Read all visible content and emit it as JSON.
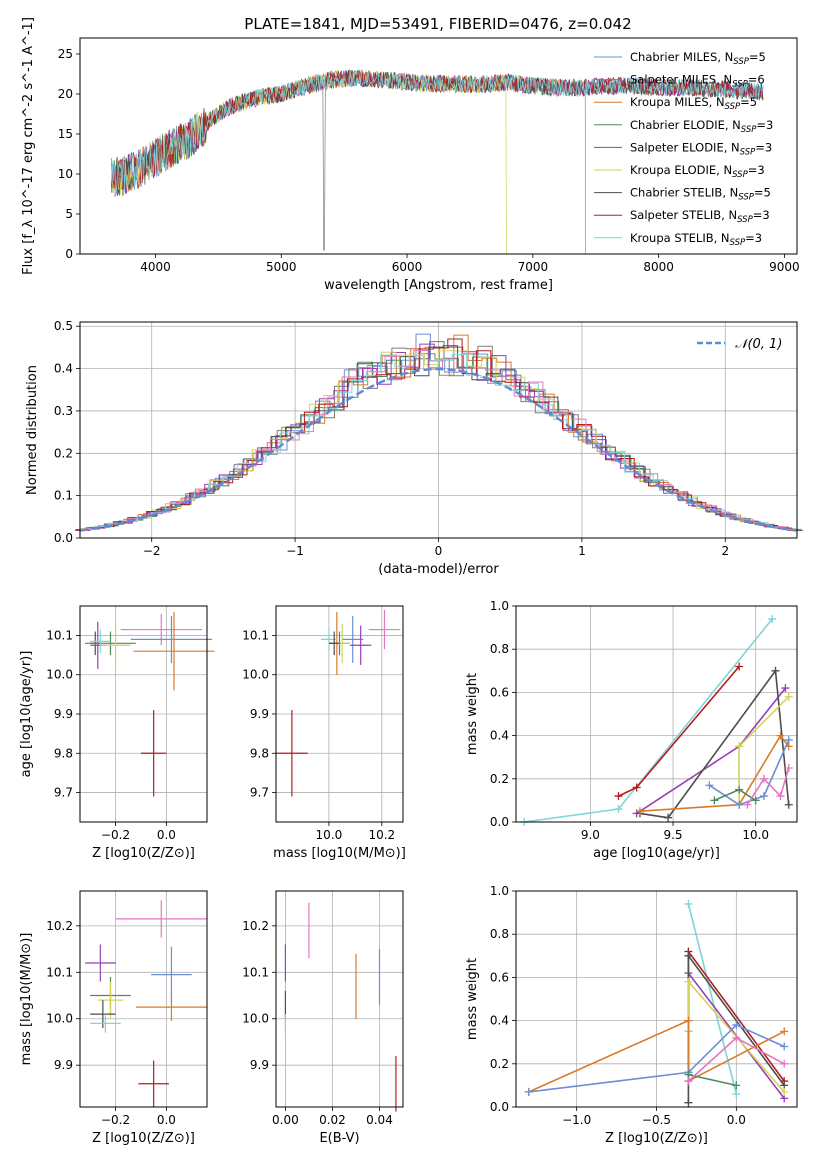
{
  "figure": {
    "title": "PLATE=1841, MJD=53491, FIBERID=0476, z=0.042"
  },
  "colors": {
    "Chabrier MILES": "#6c8ed6",
    "Salpeter MILES": "#7d7d7d",
    "Kroupa MILES": "#d97b2a",
    "Chabrier ELODIE": "#4f8a5d",
    "Salpeter ELODIE": "#9a3fb5",
    "Kroupa ELODIE": "#d3d35a",
    "Chabrier STELIB": "#4d4d4d",
    "Salpeter STELIB": "#b51d1d",
    "Kroupa STELIB": "#7fd4d8",
    "pink": "#e377c2",
    "gauss": "#5b8bdb"
  },
  "chart_data": [
    {
      "id": "spectrum",
      "type": "line",
      "xlabel": "wavelength [Angstrom, rest frame]",
      "ylabel": "Flux [f_λ 10^-17 erg cm^-2 s^-1 A^-1]",
      "xlim": [
        3400,
        9100
      ],
      "ylim": [
        0,
        27
      ],
      "xticks": [
        4000,
        5000,
        6000,
        7000,
        8000,
        9000
      ],
      "yticks": [
        0,
        5,
        10,
        15,
        20,
        25
      ],
      "grid": false,
      "legend_position": "top-right",
      "legend": [
        {
          "name": "Chabrier MILES",
          "nssp": "5",
          "color": "#6c8ed6"
        },
        {
          "name": "Salpeter MILES",
          "nssp": "6",
          "color": "#7d7d7d"
        },
        {
          "name": "Kroupa MILES",
          "nssp": "5",
          "color": "#d97b2a"
        },
        {
          "name": "Chabrier ELODIE",
          "nssp": "3",
          "color": "#4f8a5d"
        },
        {
          "name": "Salpeter ELODIE",
          "nssp": "3",
          "color": "#9a3fb5"
        },
        {
          "name": "Kroupa ELODIE",
          "nssp": "3",
          "color": "#d3d35a"
        },
        {
          "name": "Chabrier STELIB",
          "nssp": "5",
          "color": "#4d4d4d"
        },
        {
          "name": "Salpeter STELIB",
          "nssp": "3",
          "color": "#b51d1d"
        },
        {
          "name": "Kroupa STELIB",
          "nssp": "3",
          "color": "#7fd4d8"
        }
      ],
      "data_x": [
        3650,
        3750,
        3850,
        3950,
        4050,
        4150,
        4250,
        4350,
        4450,
        4600,
        4800,
        5000,
        5200,
        5400,
        5600,
        5800,
        6000,
        6200,
        6400,
        6600,
        6800,
        7000,
        7200,
        7400,
        7600,
        7800,
        8000,
        8200,
        8400,
        8600,
        8800
      ],
      "data_y": [
        9.5,
        9.8,
        10.5,
        11.5,
        12.5,
        13.5,
        14.2,
        15.5,
        17.0,
        18.5,
        19.5,
        20.0,
        21.0,
        21.8,
        22.0,
        21.8,
        21.5,
        21.3,
        21.2,
        21.2,
        21.5,
        21.0,
        20.8,
        20.8,
        21.0,
        21.0,
        20.8,
        20.8,
        20.7,
        20.5,
        20.3
      ],
      "features": [
        {
          "series": "Kroupa ELODIE",
          "x": 6790,
          "note": "drop"
        },
        {
          "series": "Kroupa MILES",
          "x": 7420,
          "note": "drop"
        }
      ]
    },
    {
      "id": "residuals",
      "type": "histogram",
      "xlabel": "(data-model)/error",
      "ylabel": "Normed distribution",
      "xlim": [
        -2.5,
        2.5
      ],
      "ylim": [
        0,
        0.51
      ],
      "xticks": [
        -2,
        -1,
        0,
        1,
        2
      ],
      "yticks": [
        0.0,
        0.1,
        0.2,
        0.3,
        0.4,
        0.5
      ],
      "grid": true,
      "legend_position": "top-right",
      "gaussian_label": "𝒩(0, 1)",
      "bin_width": 0.1
    },
    {
      "id": "age_vs_Z",
      "type": "errorbar",
      "xlabel": "Z [log10(Z/Z⊙)]",
      "ylabel": "age [log10(age/yr)]",
      "xlim": [
        -0.34,
        0.16
      ],
      "ylim": [
        9.625,
        10.175
      ],
      "xticks": [
        -0.2,
        0.0
      ],
      "yticks": [
        9.7,
        9.8,
        9.9,
        10.0,
        10.1
      ],
      "grid": true,
      "points": [
        {
          "color": "#e377c2",
          "x": -0.02,
          "xerr": 0.16,
          "y": 10.115,
          "yerr": 0.04
        },
        {
          "color": "#6c8ed6",
          "x": 0.02,
          "xerr": 0.16,
          "y": 10.09,
          "yerr": 0.06
        },
        {
          "color": "#d97b2a",
          "x": 0.03,
          "xerr": 0.16,
          "y": 10.06,
          "yerr": 0.1
        },
        {
          "color": "#4d4d4d",
          "x": -0.28,
          "xerr": 0.02,
          "y": 10.08,
          "yerr": 0.03
        },
        {
          "color": "#9a3fb5",
          "x": -0.27,
          "xerr": 0.03,
          "y": 10.075,
          "yerr": 0.06
        },
        {
          "color": "#4f8a5d",
          "x": -0.22,
          "xerr": 0.1,
          "y": 10.08,
          "yerr": 0.03
        },
        {
          "color": "#d3d35a",
          "x": -0.2,
          "xerr": 0.06,
          "y": 10.075,
          "yerr": 0.05
        },
        {
          "color": "#7fd4d8",
          "x": -0.26,
          "xerr": 0.04,
          "y": 10.085,
          "yerr": 0.03
        },
        {
          "color": "#b51d1d",
          "x": -0.05,
          "xerr": 0.05,
          "y": 9.8,
          "yerr": 0.11
        }
      ]
    },
    {
      "id": "age_vs_mass",
      "type": "errorbar",
      "xlabel": "mass [log10(M/M⊙)]",
      "ylabel": "",
      "xlim": [
        9.8,
        10.28
      ],
      "ylim": [
        9.625,
        10.175
      ],
      "xticks": [
        10.0,
        10.2
      ],
      "yticks": [
        9.7,
        9.8,
        9.9,
        10.0,
        10.1
      ],
      "grid": true,
      "points": [
        {
          "color": "#e377c2",
          "x": 10.21,
          "xerr": 0.06,
          "y": 10.115,
          "yerr": 0.05
        },
        {
          "color": "#6c8ed6",
          "x": 10.09,
          "xerr": 0.04,
          "y": 10.09,
          "yerr": 0.06
        },
        {
          "color": "#d97b2a",
          "x": 10.03,
          "xerr": 0.03,
          "y": 10.08,
          "yerr": 0.08
        },
        {
          "color": "#9a3fb5",
          "x": 10.12,
          "xerr": 0.04,
          "y": 10.075,
          "yerr": 0.05
        },
        {
          "color": "#4f8a5d",
          "x": 10.04,
          "xerr": 0.04,
          "y": 10.08,
          "yerr": 0.03
        },
        {
          "color": "#d3d35a",
          "x": 10.05,
          "xerr": 0.03,
          "y": 10.08,
          "yerr": 0.05
        },
        {
          "color": "#7fd4d8",
          "x": 10.0,
          "xerr": 0.03,
          "y": 10.09,
          "yerr": 0.03
        },
        {
          "color": "#4d4d4d",
          "x": 10.02,
          "xerr": 0.02,
          "y": 10.08,
          "yerr": 0.03
        },
        {
          "color": "#b51d1d",
          "x": 9.86,
          "xerr": 0.06,
          "y": 9.8,
          "yerr": 0.11
        }
      ]
    },
    {
      "id": "massweight_vs_age",
      "type": "line",
      "xlabel": "age [log10(age/yr)]",
      "ylabel": "mass weight",
      "xlim": [
        8.55,
        10.25
      ],
      "ylim": [
        0,
        1.0
      ],
      "xticks": [
        9.0,
        9.5,
        10.0
      ],
      "yticks": [
        0.0,
        0.2,
        0.4,
        0.6,
        0.8,
        1.0
      ],
      "grid": true,
      "series": [
        {
          "name": "Kroupa STELIB",
          "color": "#7fd4d8",
          "points": [
            [
              8.6,
              0.0
            ],
            [
              9.17,
              0.06
            ],
            [
              10.1,
              0.94
            ]
          ]
        },
        {
          "name": "Salpeter STELIB",
          "color": "#b51d1d",
          "points": [
            [
              9.17,
              0.12
            ],
            [
              9.28,
              0.16
            ],
            [
              9.9,
              0.72
            ]
          ]
        },
        {
          "name": "Salpeter ELODIE",
          "color": "#9a3fb5",
          "points": [
            [
              9.28,
              0.04
            ],
            [
              9.9,
              0.35
            ],
            [
              10.18,
              0.62
            ]
          ]
        },
        {
          "name": "Chabrier STELIB",
          "color": "#4d4d4d",
          "points": [
            [
              9.3,
              0.04
            ],
            [
              9.47,
              0.02
            ],
            [
              10.12,
              0.7
            ],
            [
              10.2,
              0.08
            ]
          ]
        },
        {
          "name": "Kroupa ELODIE",
          "color": "#d3d35a",
          "points": [
            [
              9.9,
              0.08
            ],
            [
              9.9,
              0.35
            ],
            [
              10.2,
              0.58
            ]
          ]
        },
        {
          "name": "Kroupa MILES",
          "color": "#d97b2a",
          "points": [
            [
              9.3,
              0.05
            ],
            [
              9.9,
              0.08
            ],
            [
              10.15,
              0.4
            ],
            [
              10.2,
              0.35
            ]
          ]
        },
        {
          "name": "Chabrier MILES",
          "color": "#6c8ed6",
          "points": [
            [
              9.72,
              0.17
            ],
            [
              9.9,
              0.08
            ],
            [
              10.05,
              0.12
            ],
            [
              10.2,
              0.38
            ]
          ]
        },
        {
          "name": "Chabrier ELODIE",
          "color": "#4f8a5d",
          "points": [
            [
              9.75,
              0.1
            ],
            [
              9.9,
              0.15
            ],
            [
              10.0,
              0.1
            ]
          ]
        },
        {
          "name": "pink",
          "color": "#e377c2",
          "points": [
            [
              9.95,
              0.08
            ],
            [
              10.05,
              0.2
            ],
            [
              10.15,
              0.12
            ],
            [
              10.2,
              0.25
            ]
          ]
        }
      ]
    },
    {
      "id": "mass_vs_Z",
      "type": "errorbar",
      "xlabel": "Z [log10(Z/Z⊙)]",
      "ylabel": "mass [log10(M/M⊙)]",
      "xlim": [
        -0.34,
        0.16
      ],
      "ylim": [
        9.81,
        10.275
      ],
      "xticks": [
        -0.2,
        0.0
      ],
      "yticks": [
        9.9,
        10.0,
        10.1,
        10.2
      ],
      "grid": true,
      "points": [
        {
          "color": "#e377c2",
          "x": -0.02,
          "xerr": 0.18,
          "y": 10.215,
          "yerr": 0.04
        },
        {
          "color": "#9a3fb5",
          "x": -0.26,
          "xerr": 0.06,
          "y": 10.12,
          "yerr": 0.04
        },
        {
          "color": "#6c8ed6",
          "x": 0.02,
          "xerr": 0.08,
          "y": 10.095,
          "yerr": 0.06
        },
        {
          "color": "#4f8a5d",
          "x": -0.22,
          "xerr": 0.08,
          "y": 10.05,
          "yerr": 0.04
        },
        {
          "color": "#d3d35a",
          "x": -0.22,
          "xerr": 0.05,
          "y": 10.04,
          "yerr": 0.04
        },
        {
          "color": "#d97b2a",
          "x": 0.02,
          "xerr": 0.14,
          "y": 10.025,
          "yerr": 0.03
        },
        {
          "color": "#4d4d4d",
          "x": -0.25,
          "xerr": 0.05,
          "y": 10.01,
          "yerr": 0.03
        },
        {
          "color": "#7fd4d8",
          "x": -0.24,
          "xerr": 0.06,
          "y": 9.99,
          "yerr": 0.02
        },
        {
          "color": "#b51d1d",
          "x": -0.05,
          "xerr": 0.06,
          "y": 9.86,
          "yerr": 0.05
        }
      ]
    },
    {
      "id": "mass_vs_ebv",
      "type": "errorbar",
      "xlabel": "E(B-V)",
      "ylabel": "",
      "xlim": [
        -0.004,
        0.05
      ],
      "ylim": [
        9.81,
        10.275
      ],
      "xticks": [
        0.0,
        0.02,
        0.04
      ],
      "yticks": [
        9.9,
        10.0,
        10.1,
        10.2
      ],
      "grid": true,
      "points": [
        {
          "color": "#e377c2",
          "x": 0.01,
          "xerr": 0,
          "y": 10.19,
          "yerr": 0.06
        },
        {
          "color": "#9a3fb5",
          "x": 0.0,
          "xerr": 0,
          "y": 10.12,
          "yerr": 0.04
        },
        {
          "color": "#6c8ed6",
          "x": 0.04,
          "xerr": 0,
          "y": 10.09,
          "yerr": 0.06
        },
        {
          "color": "#d97b2a",
          "x": 0.03,
          "xerr": 0,
          "y": 10.07,
          "yerr": 0.07
        },
        {
          "color": "#4d4d4d",
          "x": 0.0,
          "xerr": 0,
          "y": 10.03,
          "yerr": 0.03
        },
        {
          "color": "#7fd4d8",
          "x": 0.0,
          "xerr": 0,
          "y": 9.99,
          "yerr": 0.02
        },
        {
          "color": "#b51d1d",
          "x": 0.047,
          "xerr": 0,
          "y": 9.86,
          "yerr": 0.06
        }
      ]
    },
    {
      "id": "massweight_vs_Z",
      "type": "line",
      "xlabel": "Z [log10(Z/Z⊙)]",
      "ylabel": "mass weight",
      "xlim": [
        -1.38,
        0.38
      ],
      "ylim": [
        0,
        1.0
      ],
      "xticks": [
        -1.0,
        -0.5,
        0.0
      ],
      "yticks": [
        0.0,
        0.2,
        0.4,
        0.6,
        0.8,
        1.0
      ],
      "grid": true,
      "series": [
        {
          "name": "Kroupa STELIB",
          "color": "#7fd4d8",
          "points": [
            [
              -0.3,
              0.94
            ],
            [
              0.0,
              0.06
            ]
          ]
        },
        {
          "name": "Salpeter STELIB",
          "color": "#b51d1d",
          "points": [
            [
              -0.3,
              0.16
            ],
            [
              -0.3,
              0.72
            ],
            [
              0.3,
              0.12
            ]
          ]
        },
        {
          "name": "Salpeter ELODIE",
          "color": "#9a3fb5",
          "points": [
            [
              -0.3,
              0.35
            ],
            [
              -0.3,
              0.62
            ],
            [
              0.3,
              0.04
            ]
          ]
        },
        {
          "name": "Chabrier STELIB",
          "color": "#4d4d4d",
          "points": [
            [
              -0.3,
              0.02
            ],
            [
              -0.3,
              0.7
            ],
            [
              0.3,
              0.1
            ]
          ]
        },
        {
          "name": "Kroupa ELODIE",
          "color": "#d3d35a",
          "points": [
            [
              -0.3,
              0.35
            ],
            [
              -0.3,
              0.58
            ],
            [
              0.3,
              0.07
            ]
          ]
        },
        {
          "name": "Kroupa MILES",
          "color": "#d97b2a",
          "points": [
            [
              -1.3,
              0.07
            ],
            [
              -0.3,
              0.4
            ],
            [
              -0.3,
              0.12
            ],
            [
              0.3,
              0.35
            ]
          ]
        },
        {
          "name": "Chabrier MILES",
          "color": "#6c8ed6",
          "points": [
            [
              -1.3,
              0.07
            ],
            [
              -0.3,
              0.16
            ],
            [
              0.0,
              0.38
            ],
            [
              0.3,
              0.28
            ]
          ]
        },
        {
          "name": "Chabrier ELODIE",
          "color": "#4f8a5d",
          "points": [
            [
              -0.3,
              0.15
            ],
            [
              0.0,
              0.1
            ]
          ]
        },
        {
          "name": "pink",
          "color": "#e377c2",
          "points": [
            [
              -0.3,
              0.12
            ],
            [
              0.0,
              0.32
            ],
            [
              0.3,
              0.2
            ]
          ]
        }
      ]
    }
  ]
}
